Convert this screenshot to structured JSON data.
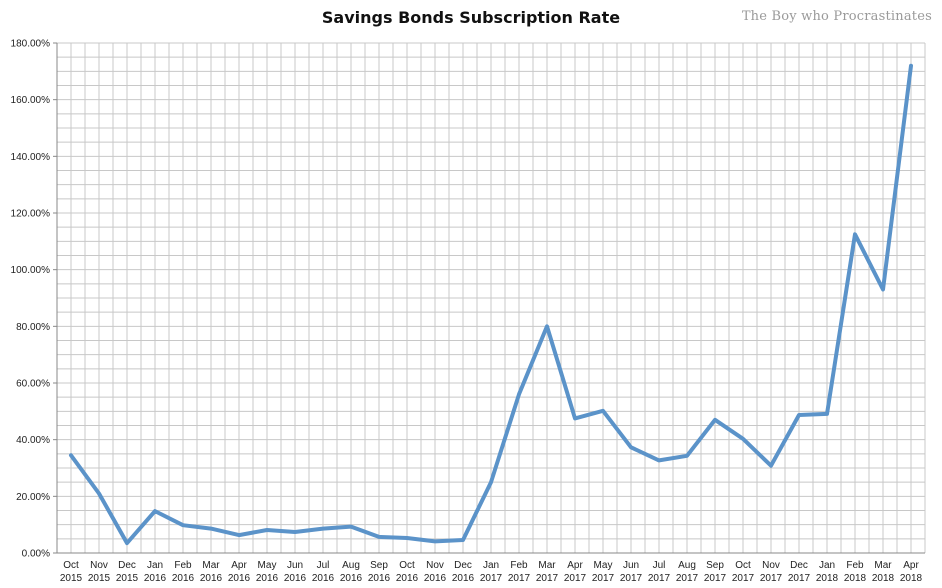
{
  "chart_data": {
    "type": "line",
    "title": "Savings Bonds Subscription Rate",
    "watermark": "The Boy who Procrastinates",
    "xlabel": "",
    "ylabel": "",
    "ylim": [
      0,
      180
    ],
    "y_ticks": [
      "0.00%",
      "20.00%",
      "40.00%",
      "60.00%",
      "80.00%",
      "100.00%",
      "120.00%",
      "140.00%",
      "160.00%",
      "180.00%"
    ],
    "grid": true,
    "legend": "none",
    "line_color": "#5b93c9",
    "categories": [
      [
        "Oct",
        "2015"
      ],
      [
        "Nov",
        "2015"
      ],
      [
        "Dec",
        "2015"
      ],
      [
        "Jan",
        "2016"
      ],
      [
        "Feb",
        "2016"
      ],
      [
        "Mar",
        "2016"
      ],
      [
        "Apr",
        "2016"
      ],
      [
        "May",
        "2016"
      ],
      [
        "Jun",
        "2016"
      ],
      [
        "Jul",
        "2016"
      ],
      [
        "Aug",
        "2016"
      ],
      [
        "Sep",
        "2016"
      ],
      [
        "Oct",
        "2016"
      ],
      [
        "Nov",
        "2016"
      ],
      [
        "Dec",
        "2016"
      ],
      [
        "Jan",
        "2017"
      ],
      [
        "Feb",
        "2017"
      ],
      [
        "Mar",
        "2017"
      ],
      [
        "Apr",
        "2017"
      ],
      [
        "May",
        "2017"
      ],
      [
        "Jun",
        "2017"
      ],
      [
        "Jul",
        "2017"
      ],
      [
        "Aug",
        "2017"
      ],
      [
        "Sep",
        "2017"
      ],
      [
        "Oct",
        "2017"
      ],
      [
        "Nov",
        "2017"
      ],
      [
        "Dec",
        "2017"
      ],
      [
        "Jan",
        "2018"
      ],
      [
        "Feb",
        "2018"
      ],
      [
        "Mar",
        "2018"
      ],
      [
        "Apr",
        "2018"
      ]
    ],
    "values": [
      34.5,
      21,
      3.5,
      14.8,
      9.8,
      8.6,
      6.3,
      8.1,
      7.4,
      8.6,
      9.3,
      5.7,
      5.3,
      4.1,
      4.6,
      25,
      56,
      80,
      47.5,
      50.2,
      37.3,
      32.7,
      34.3,
      47,
      40.3,
      30.8,
      48.7,
      49.1,
      112.5,
      93,
      172
    ]
  }
}
